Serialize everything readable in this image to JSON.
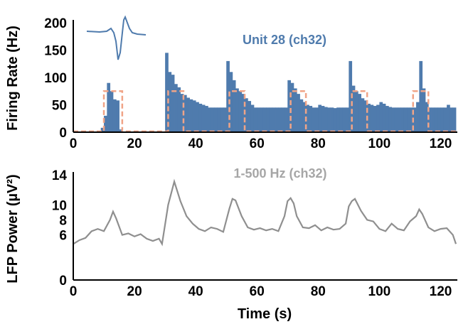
{
  "colors": {
    "firing": "#4f7bad",
    "window": "#f0a487",
    "lfp": "#8f8f8f",
    "unit_label": "#4f7bad",
    "lfp_label": "#a6a6a6",
    "axis": "#000000"
  },
  "chart_data": [
    {
      "type": "bar",
      "ylabel": "Firing Rate (Hz)",
      "series_label": "Unit 28 (ch32)",
      "xlim": [
        0,
        125
      ],
      "ylim": [
        0,
        200
      ],
      "xticks": [
        0,
        20,
        40,
        60,
        80,
        100,
        120
      ],
      "yticks": [
        0,
        50,
        100,
        150,
        200
      ],
      "bin_width_s": 1,
      "x": [
        0,
        1,
        2,
        3,
        4,
        5,
        6,
        7,
        8,
        9,
        10,
        11,
        12,
        13,
        14,
        15,
        16,
        17,
        18,
        19,
        20,
        21,
        22,
        23,
        24,
        25,
        26,
        27,
        28,
        29,
        30,
        31,
        32,
        33,
        34,
        35,
        36,
        37,
        38,
        39,
        40,
        41,
        42,
        43,
        44,
        45,
        46,
        47,
        48,
        49,
        50,
        51,
        52,
        53,
        54,
        55,
        56,
        57,
        58,
        59,
        60,
        61,
        62,
        63,
        64,
        65,
        66,
        67,
        68,
        69,
        70,
        71,
        72,
        73,
        74,
        75,
        76,
        77,
        78,
        79,
        80,
        81,
        82,
        83,
        84,
        85,
        86,
        87,
        88,
        89,
        90,
        91,
        92,
        93,
        94,
        95,
        96,
        97,
        98,
        99,
        100,
        101,
        102,
        103,
        104,
        105,
        106,
        107,
        108,
        109,
        110,
        111,
        112,
        113,
        114,
        115,
        116,
        117,
        118,
        119,
        120,
        121,
        122,
        123,
        124
      ],
      "firing_rate_hz": [
        0,
        0,
        0,
        0,
        0,
        0,
        0,
        0,
        0,
        8,
        30,
        90,
        75,
        60,
        58,
        5,
        0,
        0,
        0,
        0,
        0,
        0,
        0,
        0,
        0,
        0,
        0,
        0,
        0,
        0,
        145,
        110,
        105,
        88,
        82,
        70,
        68,
        63,
        60,
        58,
        55,
        52,
        50,
        48,
        45,
        45,
        45,
        45,
        45,
        45,
        130,
        110,
        95,
        80,
        75,
        70,
        62,
        57,
        50,
        45,
        45,
        45,
        45,
        45,
        45,
        45,
        45,
        45,
        45,
        45,
        95,
        90,
        80,
        70,
        60,
        55,
        50,
        48,
        45,
        45,
        50,
        48,
        46,
        45,
        45,
        44,
        45,
        45,
        45,
        45,
        130,
        85,
        75,
        70,
        62,
        58,
        52,
        50,
        48,
        50,
        55,
        52,
        48,
        46,
        45,
        45,
        45,
        45,
        45,
        45,
        45,
        45,
        55,
        130,
        80,
        55,
        45,
        45,
        45,
        45,
        45,
        45,
        50,
        45,
        45
      ],
      "stim_windows_s": [
        [
          10,
          16
        ],
        [
          31,
          36
        ],
        [
          51,
          56
        ],
        [
          71,
          76
        ],
        [
          91,
          96
        ],
        [
          111,
          116
        ]
      ],
      "stim_level_hz": 75,
      "inset_waveform": "spike-waveform"
    },
    {
      "type": "line",
      "xlabel": "Time (s)",
      "ylabel": "LFP Power (µV²)",
      "series_label": "1-500 Hz (ch32)",
      "xlim": [
        0,
        125
      ],
      "ylim": [
        0,
        14
      ],
      "xticks": [
        0,
        20,
        40,
        60,
        80,
        100,
        120
      ],
      "yticks": [
        0,
        6,
        8,
        10,
        14
      ],
      "x": [
        0,
        2,
        4,
        6,
        8,
        10,
        12,
        13,
        14,
        16,
        18,
        20,
        22,
        24,
        26,
        28,
        29,
        31,
        33,
        35,
        37,
        39,
        41,
        43,
        45,
        47,
        49,
        51,
        52,
        53,
        55,
        57,
        59,
        61,
        63,
        65,
        67,
        69,
        70,
        71,
        72,
        73,
        75,
        77,
        79,
        81,
        83,
        85,
        87,
        89,
        90,
        91,
        92,
        94,
        96,
        98,
        100,
        102,
        104,
        106,
        108,
        110,
        112,
        113,
        114,
        116,
        118,
        120,
        122,
        124,
        125
      ],
      "lfp_power": [
        4.8,
        5.3,
        5.6,
        6.5,
        6.8,
        6.5,
        8.0,
        9.1,
        8.2,
        6.0,
        6.2,
        5.8,
        6.1,
        5.5,
        5.2,
        5.5,
        4.8,
        10.0,
        13.1,
        10.5,
        8.5,
        7.5,
        6.8,
        6.5,
        7.0,
        6.8,
        6.4,
        9.5,
        10.8,
        10.6,
        8.5,
        7.0,
        6.7,
        6.9,
        6.6,
        6.8,
        6.5,
        8.5,
        10.5,
        10.9,
        10.2,
        8.5,
        7.0,
        6.9,
        7.3,
        6.6,
        7.0,
        6.7,
        6.8,
        7.5,
        9.8,
        10.5,
        10.8,
        9.2,
        8.0,
        7.8,
        6.8,
        6.5,
        7.5,
        6.8,
        6.6,
        7.8,
        8.5,
        9.4,
        8.8,
        7.0,
        6.5,
        6.8,
        6.9,
        6.0,
        4.8
      ]
    }
  ]
}
